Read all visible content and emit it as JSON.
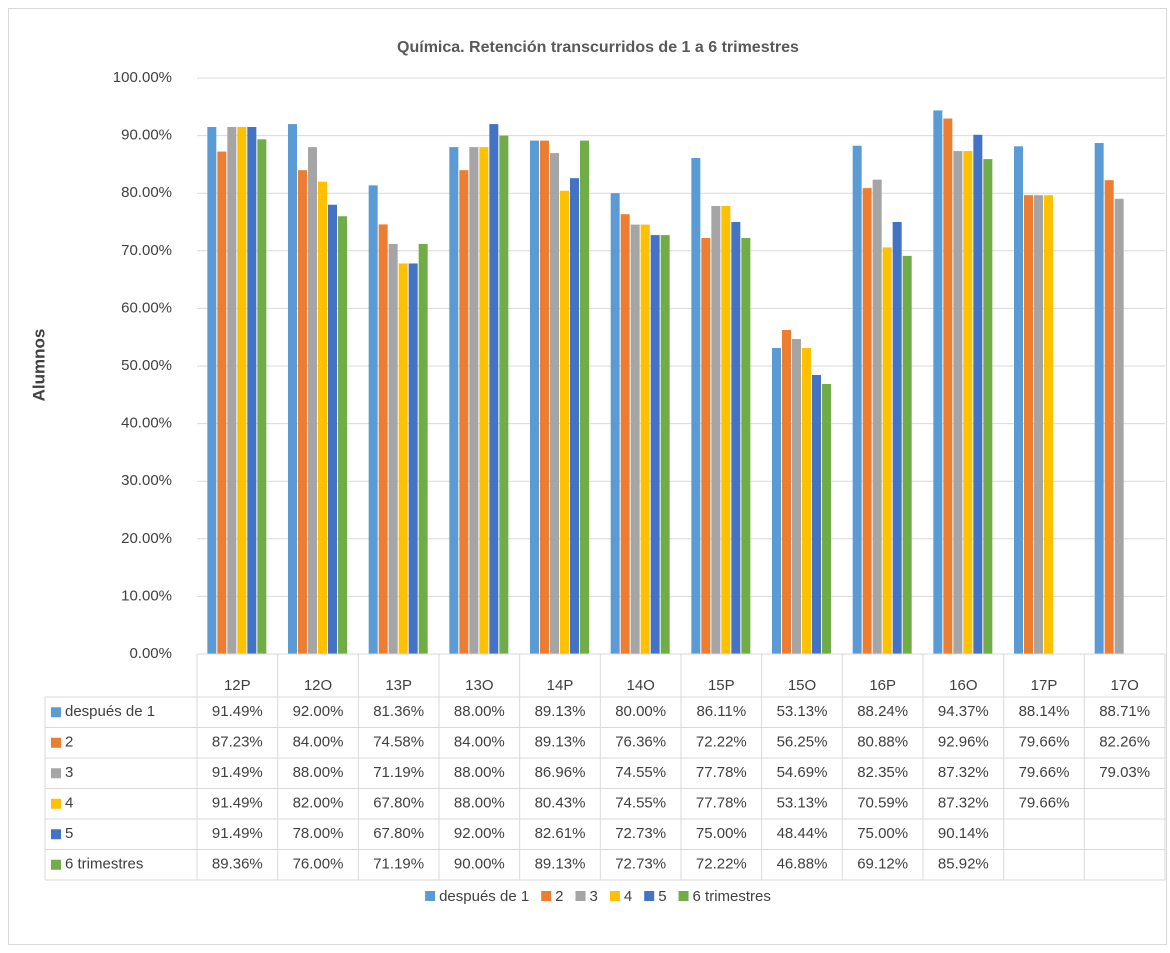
{
  "chart_data": {
    "type": "bar",
    "title": "Química. Retención transcurridos de 1 a 6 trimestres",
    "y_label": "Alumnos",
    "categories": [
      "12P",
      "12O",
      "13P",
      "13O",
      "14P",
      "14O",
      "15P",
      "15O",
      "16P",
      "16O",
      "17P",
      "17O"
    ],
    "ylim": [
      0,
      100
    ],
    "yticks": [
      {
        "value": 0,
        "label": "0.00%"
      },
      {
        "value": 10,
        "label": "10.00%"
      },
      {
        "value": 20,
        "label": "20.00%"
      },
      {
        "value": 30,
        "label": "30.00%"
      },
      {
        "value": 40,
        "label": "40.00%"
      },
      {
        "value": 50,
        "label": "50.00%"
      },
      {
        "value": 60,
        "label": "60.00%"
      },
      {
        "value": 70,
        "label": "70.00%"
      },
      {
        "value": 80,
        "label": "80.00%"
      },
      {
        "value": 90,
        "label": "90.00%"
      },
      {
        "value": 100,
        "label": "100.00%"
      }
    ],
    "grid": true,
    "legend": "bottom",
    "series": [
      {
        "name": "después de 1",
        "color": "#5b9bd5",
        "values": [
          91.49,
          92.0,
          81.36,
          88.0,
          89.13,
          80.0,
          86.11,
          53.13,
          88.24,
          94.37,
          88.14,
          88.71
        ],
        "value_labels": [
          "91.49%",
          "92.00%",
          "81.36%",
          "88.00%",
          "89.13%",
          "80.00%",
          "86.11%",
          "53.13%",
          "88.24%",
          "94.37%",
          "88.14%",
          "88.71%"
        ]
      },
      {
        "name": "2",
        "color": "#ed7d31",
        "values": [
          87.23,
          84.0,
          74.58,
          84.0,
          89.13,
          76.36,
          72.22,
          56.25,
          80.88,
          92.96,
          79.66,
          82.26
        ],
        "value_labels": [
          "87.23%",
          "84.00%",
          "74.58%",
          "84.00%",
          "89.13%",
          "76.36%",
          "72.22%",
          "56.25%",
          "80.88%",
          "92.96%",
          "79.66%",
          "82.26%"
        ]
      },
      {
        "name": "3",
        "color": "#a5a5a5",
        "values": [
          91.49,
          88.0,
          71.19,
          88.0,
          86.96,
          74.55,
          77.78,
          54.69,
          82.35,
          87.32,
          79.66,
          79.03
        ],
        "value_labels": [
          "91.49%",
          "88.00%",
          "71.19%",
          "88.00%",
          "86.96%",
          "74.55%",
          "77.78%",
          "54.69%",
          "82.35%",
          "87.32%",
          "79.66%",
          "79.03%"
        ]
      },
      {
        "name": "4",
        "color": "#ffc000",
        "values": [
          91.49,
          82.0,
          67.8,
          88.0,
          80.43,
          74.55,
          77.78,
          53.13,
          70.59,
          87.32,
          79.66,
          null
        ],
        "value_labels": [
          "91.49%",
          "82.00%",
          "67.80%",
          "88.00%",
          "80.43%",
          "74.55%",
          "77.78%",
          "53.13%",
          "70.59%",
          "87.32%",
          "79.66%",
          null
        ]
      },
      {
        "name": "5",
        "color": "#4472c4",
        "values": [
          91.49,
          78.0,
          67.8,
          92.0,
          82.61,
          72.73,
          75.0,
          48.44,
          75.0,
          90.14,
          null,
          null
        ],
        "value_labels": [
          "91.49%",
          "78.00%",
          "67.80%",
          "92.00%",
          "82.61%",
          "72.73%",
          "75.00%",
          "48.44%",
          "75.00%",
          "90.14%",
          null,
          null
        ]
      },
      {
        "name": "6 trimestres",
        "color": "#70ad47",
        "values": [
          89.36,
          76.0,
          71.19,
          90.0,
          89.13,
          72.73,
          72.22,
          46.88,
          69.12,
          85.92,
          null,
          null
        ],
        "value_labels": [
          "89.36%",
          "76.00%",
          "71.19%",
          "90.00%",
          "89.13%",
          "72.73%",
          "72.22%",
          "46.88%",
          "69.12%",
          "85.92%",
          null,
          null
        ]
      }
    ]
  }
}
